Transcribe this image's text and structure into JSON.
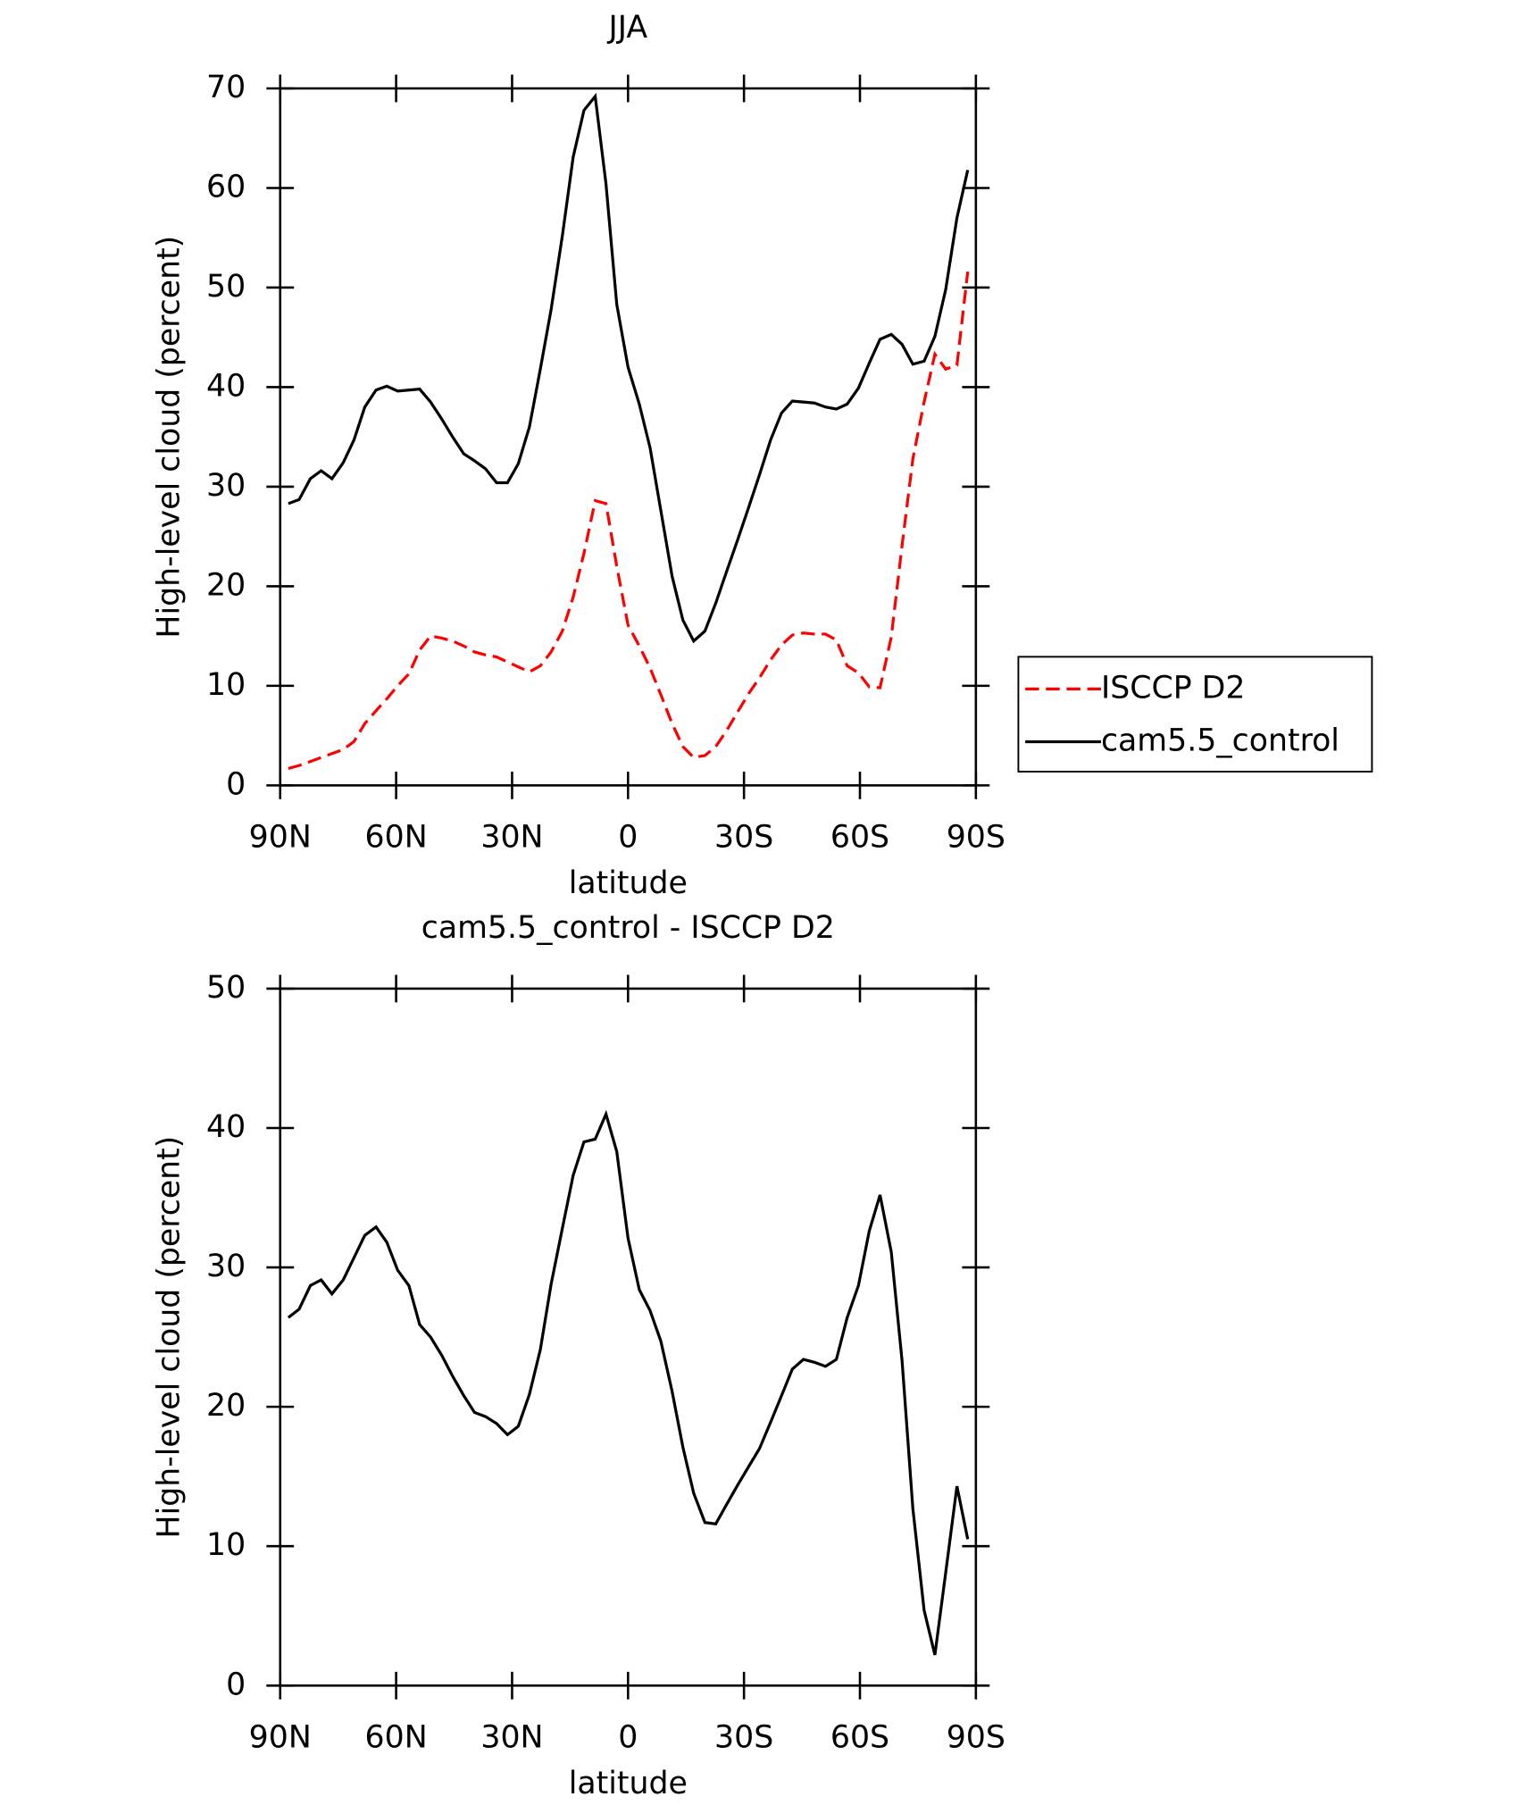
{
  "chart_data": [
    {
      "type": "line",
      "title": "JJA",
      "xlabel": "latitude",
      "ylabel": "High-level cloud (percent)",
      "x": [
        87.9,
        85.1,
        82.2,
        79.4,
        76.6,
        73.7,
        70.9,
        68.1,
        65.2,
        62.4,
        59.6,
        56.7,
        53.9,
        51.1,
        48.2,
        45.4,
        42.5,
        39.7,
        36.9,
        34.0,
        31.2,
        28.4,
        25.5,
        22.7,
        19.9,
        17.0,
        14.2,
        11.4,
        8.5,
        5.7,
        2.9,
        0.0,
        -2.9,
        -5.7,
        -8.5,
        -11.4,
        -14.2,
        -17.0,
        -19.9,
        -22.7,
        -25.5,
        -28.4,
        -31.2,
        -34.0,
        -36.9,
        -39.7,
        -42.5,
        -45.4,
        -48.2,
        -51.1,
        -53.9,
        -56.7,
        -59.6,
        -62.4,
        -65.2,
        -68.1,
        -70.9,
        -73.7,
        -76.6,
        -79.4,
        -82.2,
        -85.1,
        -87.9
      ],
      "series": [
        {
          "name": "ISCCP D2",
          "color": "#ff0000",
          "linestyle": "dashed",
          "values": [
            1.7,
            2.0,
            2.4,
            2.8,
            3.2,
            3.6,
            4.4,
            6.2,
            7.5,
            8.7,
            10.0,
            11.2,
            13.6,
            15.0,
            14.8,
            14.5,
            14.0,
            13.4,
            13.1,
            12.9,
            12.4,
            11.9,
            11.4,
            12.0,
            13.4,
            15.5,
            18.9,
            23.3,
            28.6,
            28.3,
            22.0,
            16.1,
            14.0,
            11.8,
            9.1,
            6.2,
            3.9,
            2.8,
            3.0,
            3.9,
            5.5,
            7.4,
            9.2,
            10.8,
            12.6,
            14.1,
            15.1,
            15.3,
            15.2,
            15.2,
            14.6,
            12.0,
            11.3,
            9.9,
            9.8,
            14.9,
            24.1,
            32.8,
            38.5,
            43.3,
            41.8,
            42.2,
            51.6
          ]
        },
        {
          "name": "cam5.5_control",
          "color": "#000000",
          "linestyle": "solid",
          "values": [
            28.3,
            28.7,
            30.8,
            31.6,
            30.8,
            32.4,
            34.7,
            38.0,
            39.7,
            40.1,
            39.6,
            39.7,
            39.8,
            38.5,
            36.8,
            35.0,
            33.3,
            32.6,
            31.8,
            30.4,
            30.4,
            32.3,
            36.0,
            41.8,
            47.8,
            55.2,
            63.1,
            67.8,
            69.2,
            60.4,
            48.3,
            42.0,
            38.3,
            33.9,
            27.6,
            21.0,
            16.6,
            14.5,
            15.5,
            18.3,
            21.5,
            24.7,
            27.9,
            31.2,
            34.7,
            37.4,
            38.6,
            38.5,
            38.4,
            38.0,
            37.8,
            38.3,
            39.9,
            42.4,
            44.8,
            45.3,
            44.3,
            42.3,
            42.6,
            45.1,
            49.8,
            57.0,
            61.8
          ]
        }
      ],
      "xlim": [
        90,
        -90
      ],
      "xticks": [
        {
          "value": 90,
          "label": "90N"
        },
        {
          "value": 60,
          "label": "60N"
        },
        {
          "value": 30,
          "label": "30N"
        },
        0,
        {
          "value": -30,
          "label": "30S"
        },
        {
          "value": -60,
          "label": "60S"
        },
        {
          "value": -90,
          "label": "90S"
        }
      ],
      "ylim": [
        0,
        70
      ],
      "yticks": [
        0,
        10,
        20,
        30,
        40,
        50,
        60,
        70
      ],
      "grid": false,
      "legend": "right"
    },
    {
      "type": "line",
      "title": "cam5.5_control - ISCCP D2",
      "xlabel": "latitude",
      "ylabel": "High-level cloud (percent)",
      "x": [
        87.9,
        85.1,
        82.2,
        79.4,
        76.6,
        73.7,
        70.9,
        68.1,
        65.2,
        62.4,
        59.6,
        56.7,
        53.9,
        51.1,
        48.2,
        45.4,
        42.5,
        39.7,
        36.9,
        34.0,
        31.2,
        28.4,
        25.5,
        22.7,
        19.9,
        17.0,
        14.2,
        11.4,
        8.5,
        5.7,
        2.9,
        0.0,
        -2.9,
        -5.7,
        -8.5,
        -11.4,
        -14.2,
        -17.0,
        -19.9,
        -22.7,
        -25.5,
        -28.4,
        -31.2,
        -34.0,
        -36.9,
        -39.7,
        -42.5,
        -45.4,
        -48.2,
        -51.1,
        -53.9,
        -56.7,
        -59.6,
        -62.4,
        -65.2,
        -68.1,
        -70.9,
        -73.7,
        -76.6,
        -79.4,
        -82.2,
        -85.1,
        -87.9
      ],
      "color": "#000000",
      "values": [
        26.4,
        27.0,
        28.7,
        29.1,
        28.1,
        29.1,
        30.7,
        32.3,
        32.9,
        31.8,
        29.8,
        28.7,
        25.9,
        25.0,
        23.7,
        22.2,
        20.8,
        19.6,
        19.3,
        18.8,
        18.0,
        18.6,
        20.9,
        24.1,
        28.8,
        32.8,
        36.6,
        39.0,
        39.2,
        41.0,
        38.3,
        32.1,
        28.4,
        26.9,
        24.7,
        21.1,
        17.1,
        13.8,
        11.7,
        11.6,
        13.0,
        14.4,
        15.7,
        17.0,
        18.9,
        20.8,
        22.7,
        23.4,
        23.2,
        22.9,
        23.4,
        26.4,
        28.7,
        32.6,
        35.2,
        31.1,
        23.3,
        12.7,
        5.4,
        2.2,
        8.1,
        14.3,
        10.5
      ],
      "xlim": [
        90,
        -90
      ],
      "xticks": [
        {
          "value": 90,
          "label": "90N"
        },
        {
          "value": 60,
          "label": "60N"
        },
        {
          "value": 30,
          "label": "30N"
        },
        0,
        {
          "value": -30,
          "label": "30S"
        },
        {
          "value": -60,
          "label": "60S"
        },
        {
          "value": -90,
          "label": "90S"
        }
      ],
      "ylim": [
        0,
        50
      ],
      "yticks": [
        0,
        10,
        20,
        30,
        40,
        50
      ],
      "grid": false
    }
  ]
}
